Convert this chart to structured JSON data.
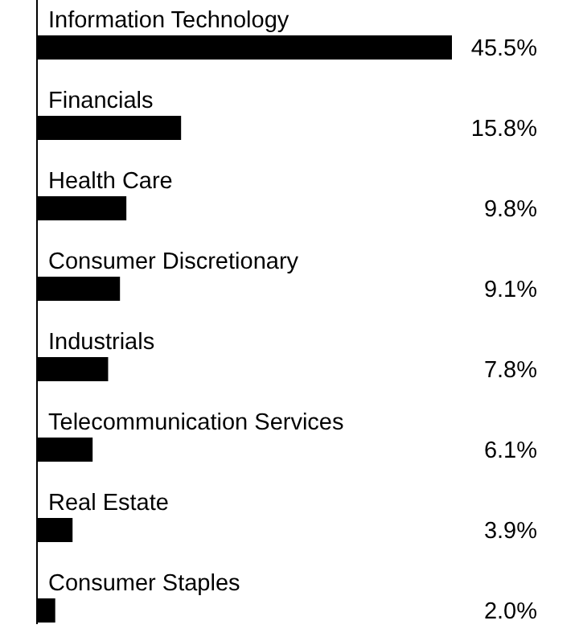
{
  "chart_data": {
    "type": "bar",
    "orientation": "horizontal",
    "categories": [
      "Information Technology",
      "Financials",
      "Health Care",
      "Consumer Discretionary",
      "Industrials",
      "Telecommunication Services",
      "Real Estate",
      "Consumer Staples"
    ],
    "values": [
      45.5,
      15.8,
      9.8,
      9.1,
      7.8,
      6.1,
      3.9,
      2.0
    ],
    "value_labels": [
      "45.5%",
      "15.8%",
      "9.8%",
      "9.1%",
      "7.8%",
      "6.1%",
      "3.9%",
      "2.0%"
    ],
    "color": "#000000"
  }
}
